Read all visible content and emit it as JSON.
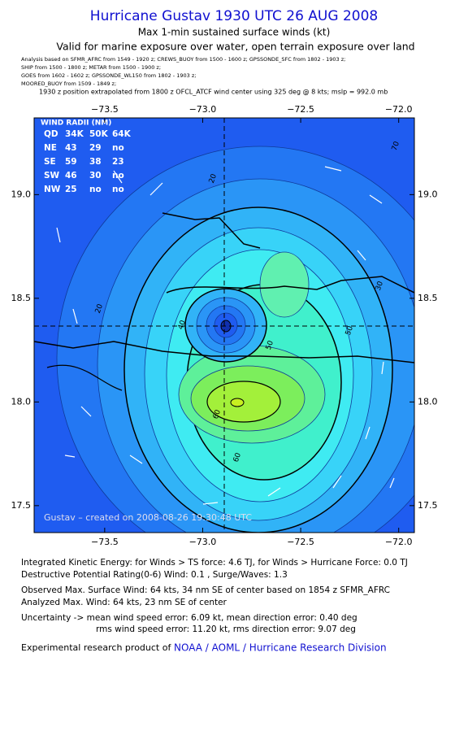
{
  "chart_data": {
    "type": "map",
    "title": "Hurricane Gustav 1930 UTC 26 AUG 2008",
    "subtitle": "Max 1-min sustained surface winds (kt)",
    "subtitle2": "Valid for marine exposure over water, open terrain exposure over land",
    "analysis_lines": [
      "Analysis based on  SFMR_AFRC from 1549 - 1920 z;  CREWS_BUOY from 1500 - 1600 z;  GPSSONDE_SFC from 1802 - 1903 z;",
      "SHIP from 1500 - 1800 z;   METAR from 1500 - 1900 z;",
      "GOES from 1602 - 1602 z;  GPSSONDE_WL150 from 1802 - 1903 z;",
      "MOORED_BUOY from 1509 - 1849 z;"
    ],
    "position_line": "1930 z position extrapolated from 1800 z OFCL_ATCF wind center using 325 deg @ 8 kts; mslp = 992.0 mb",
    "wind_radii": {
      "title": "WIND RADII (NM)",
      "header": [
        "QD",
        "34K",
        "50K",
        "64K"
      ],
      "rows": [
        [
          "NE",
          "43",
          "29",
          "no"
        ],
        [
          "SE",
          "59",
          "38",
          "23"
        ],
        [
          "SW",
          "46",
          "30",
          "no"
        ],
        [
          "NW",
          "25",
          "no",
          "no"
        ]
      ]
    },
    "credit": "Gustav – created on 2008-08-26 19:30:48 UTC",
    "contour_levels": [
      20,
      30,
      40,
      50,
      60,
      70
    ],
    "xlim": [
      -73.86,
      -71.92
    ],
    "ylim": [
      17.37,
      19.37
    ],
    "xticks": [
      {
        "value": -73.5,
        "label": "−73.5"
      },
      {
        "value": -73,
        "label": "−73.0"
      },
      {
        "value": -72.5,
        "label": "−72.5"
      },
      {
        "value": -72,
        "label": "−72.0"
      }
    ],
    "yticks": [
      {
        "value": 17.5,
        "label": "17.5"
      },
      {
        "value": 18,
        "label": "18.0"
      },
      {
        "value": 18.5,
        "label": "18.5"
      },
      {
        "value": 19,
        "label": "19.0"
      }
    ],
    "footer_lines": [
      "Integrated Kinetic Energy:  for Winds > TS force: 4.6 TJ,  for Winds > Hurricane Force: 0.0 TJ",
      "Destructive Potential Rating(0-6)   Wind: 0.1 , Surge/Waves: 1.3",
      "Observed Max. Surface Wind: 64 kts, 34 nm SE of center based on 1854 z SFMR_AFRC",
      "Analyzed Max. Wind: 64 kts, 23 nm SE of center",
      "Uncertainty -> mean wind speed error: 6.09 kt,   mean direction error: 0.40 deg",
      "rms wind speed error: 11.20 kt,   rms direction error: 9.07 deg"
    ],
    "product_text": "Experimental research product of",
    "product_link": "NOAA / AOML / Hurricane Research Division"
  }
}
